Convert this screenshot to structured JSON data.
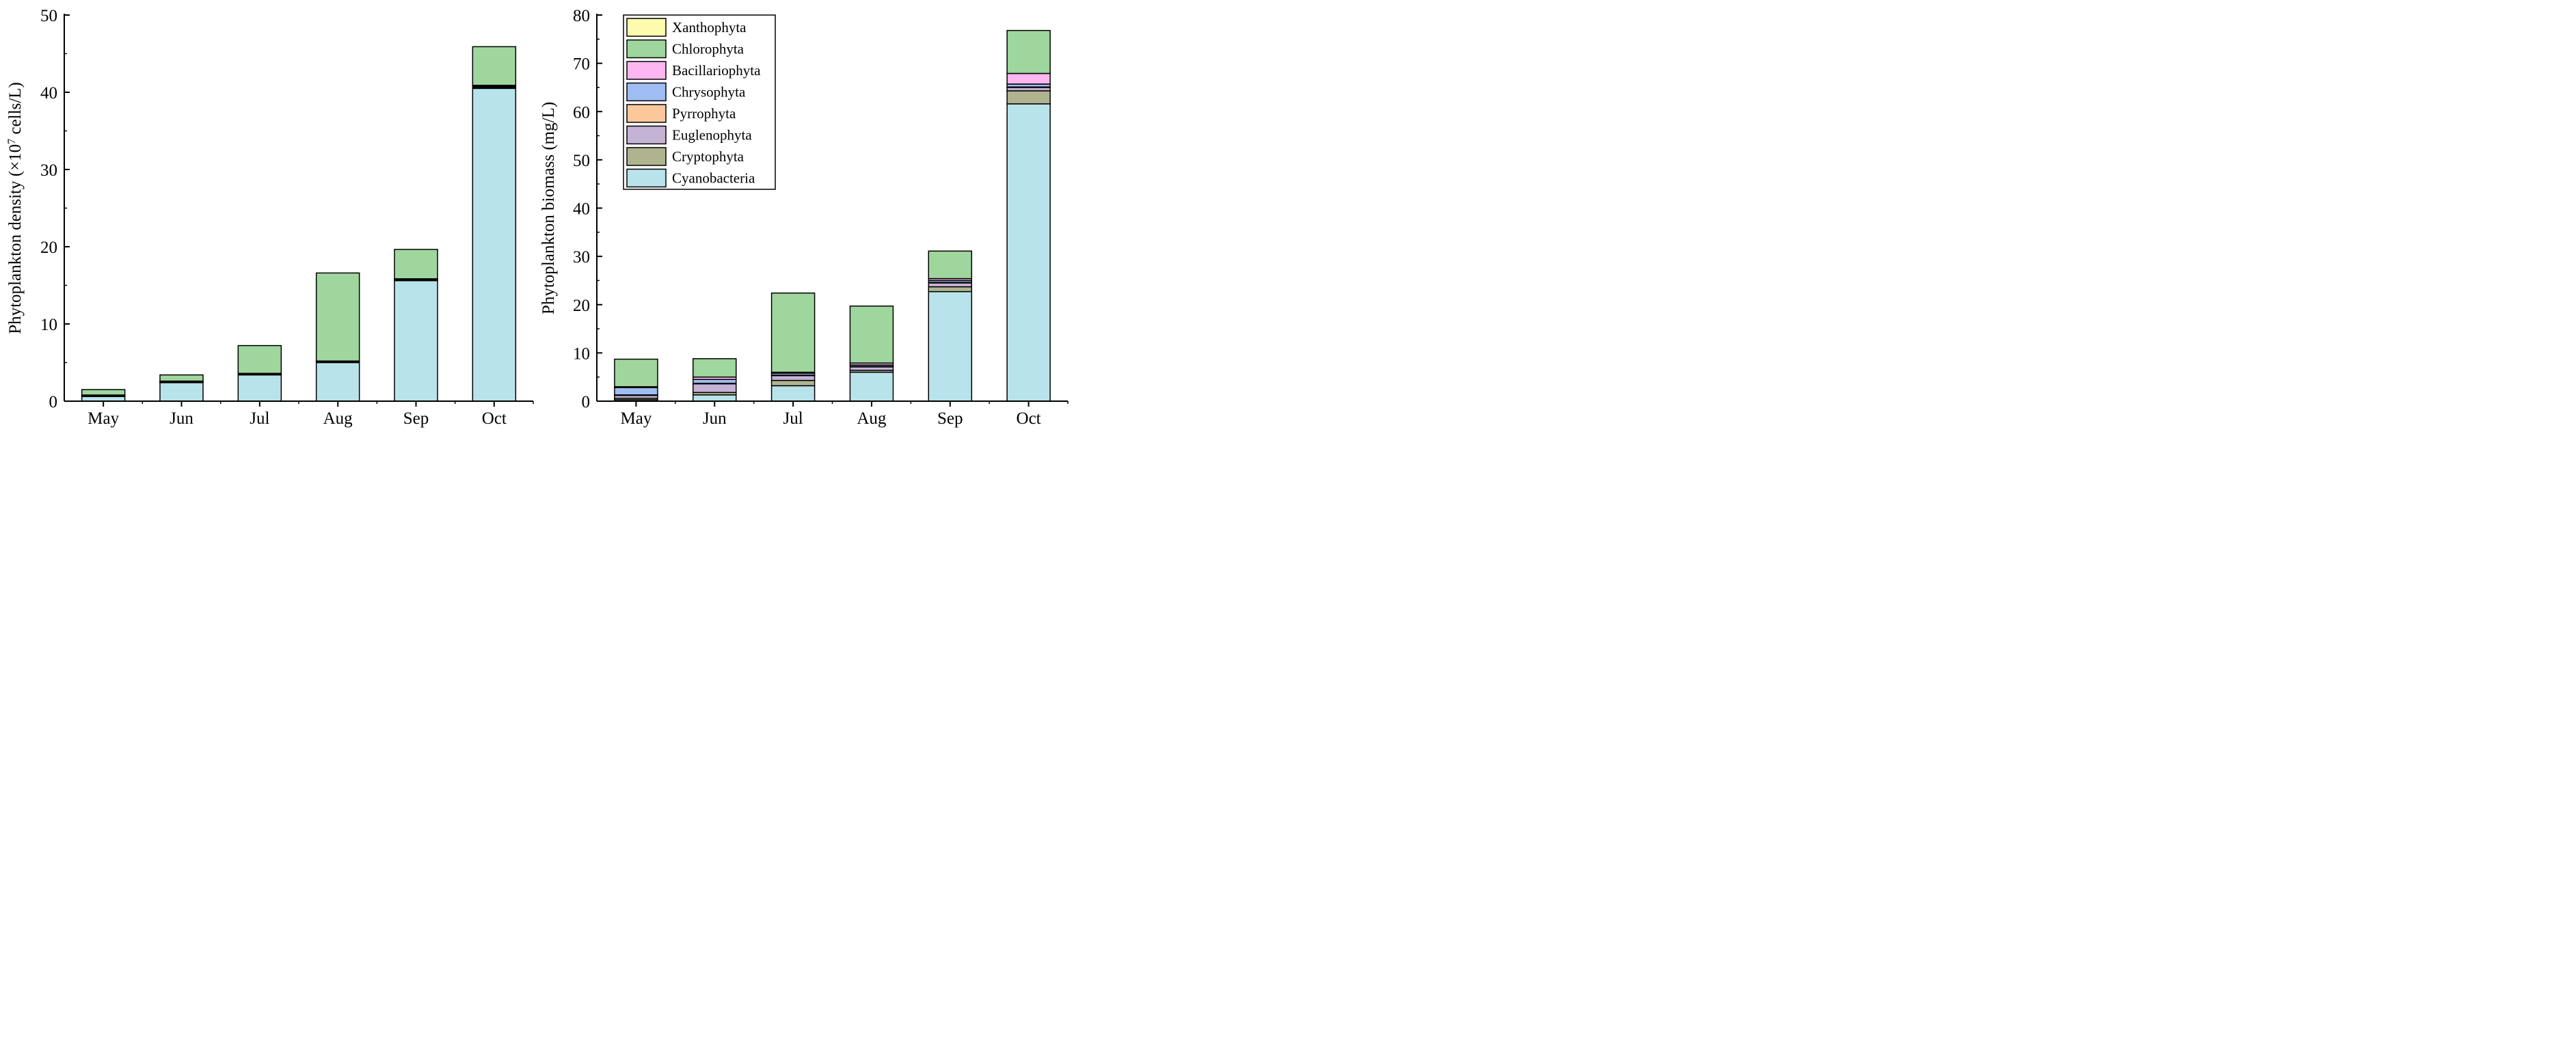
{
  "chart_data": [
    {
      "type": "bar",
      "stacked": true,
      "title": "",
      "xlabel": "",
      "ylabel": "Phytoplankton density (×10",
      "ylabel_sup": "7",
      "ylabel_suffix": " cells/L)",
      "ylim": [
        0,
        50
      ],
      "yticks": [
        "0",
        "10",
        "20",
        "30",
        "40",
        "50"
      ],
      "categories": [
        "May",
        "Jun",
        "Jul",
        "Aug",
        "Sep",
        "Oct"
      ],
      "series": [
        {
          "name": "Cyanobacteria",
          "color": "#b9e3ea",
          "values": [
            0.6,
            2.4,
            3.4,
            5.0,
            15.6,
            40.5
          ]
        },
        {
          "name": "Cryptophyta",
          "color": "#b0b48e",
          "values": [
            0.05,
            0.05,
            0.05,
            0.05,
            0.1,
            0.1
          ]
        },
        {
          "name": "Euglenophyta",
          "color": "#c5b3d6",
          "values": [
            0.05,
            0.05,
            0.05,
            0.05,
            0.05,
            0.1
          ]
        },
        {
          "name": "Pyrrophyta",
          "color": "#fdc79c",
          "values": [
            0.0,
            0.0,
            0.0,
            0.0,
            0.0,
            0.0
          ]
        },
        {
          "name": "Chrysophyta",
          "color": "#9fbdf2",
          "values": [
            0.05,
            0.05,
            0.05,
            0.05,
            0.05,
            0.1
          ]
        },
        {
          "name": "Bacillariophyta",
          "color": "#fcb6f0",
          "values": [
            0.05,
            0.05,
            0.05,
            0.05,
            0.05,
            0.1
          ]
        },
        {
          "name": "Chlorophyta",
          "color": "#9fd69d",
          "values": [
            0.7,
            0.8,
            3.6,
            11.4,
            3.8,
            5.0
          ]
        },
        {
          "name": "Xanthophyta",
          "color": "#fdfcae",
          "values": [
            0.0,
            0.0,
            0.0,
            0.0,
            0.0,
            0.0
          ]
        }
      ],
      "legend": "none"
    },
    {
      "type": "bar",
      "stacked": true,
      "title": "",
      "xlabel": "",
      "ylabel": "Phytoplankton biomass (mg/L)",
      "ylim": [
        0,
        80
      ],
      "yticks": [
        "0",
        "10",
        "20",
        "30",
        "40",
        "50",
        "60",
        "70",
        "80"
      ],
      "categories": [
        "May",
        "Jun",
        "Jul",
        "Aug",
        "Sep",
        "Oct"
      ],
      "series": [
        {
          "name": "Cyanobacteria",
          "color": "#b9e3ea",
          "values": [
            0.3,
            1.3,
            3.2,
            6.0,
            22.7,
            61.6
          ]
        },
        {
          "name": "Cryptophyta",
          "color": "#b0b48e",
          "values": [
            0.3,
            0.5,
            1.1,
            0.4,
            1.0,
            2.7
          ]
        },
        {
          "name": "Euglenophyta",
          "color": "#c5b3d6",
          "values": [
            0.6,
            1.8,
            1.0,
            0.7,
            0.8,
            0.7
          ]
        },
        {
          "name": "Pyrrophyta",
          "color": "#fdc79c",
          "values": [
            0.1,
            0.1,
            0.1,
            0.1,
            0.1,
            0.1
          ]
        },
        {
          "name": "Chrysophyta",
          "color": "#9fbdf2",
          "values": [
            1.5,
            0.8,
            0.4,
            0.3,
            0.4,
            0.6
          ]
        },
        {
          "name": "Bacillariophyta",
          "color": "#fcb6f0",
          "values": [
            0.2,
            0.5,
            0.2,
            0.4,
            0.4,
            2.2
          ]
        },
        {
          "name": "Chlorophyta",
          "color": "#9fd69d",
          "values": [
            5.7,
            3.8,
            16.4,
            11.8,
            5.7,
            8.9
          ]
        },
        {
          "name": "Xanthophyta",
          "color": "#fdfcae",
          "values": [
            0.0,
            0.0,
            0.0,
            0.0,
            0.0,
            0.0
          ]
        }
      ],
      "legend": "top-left"
    }
  ]
}
